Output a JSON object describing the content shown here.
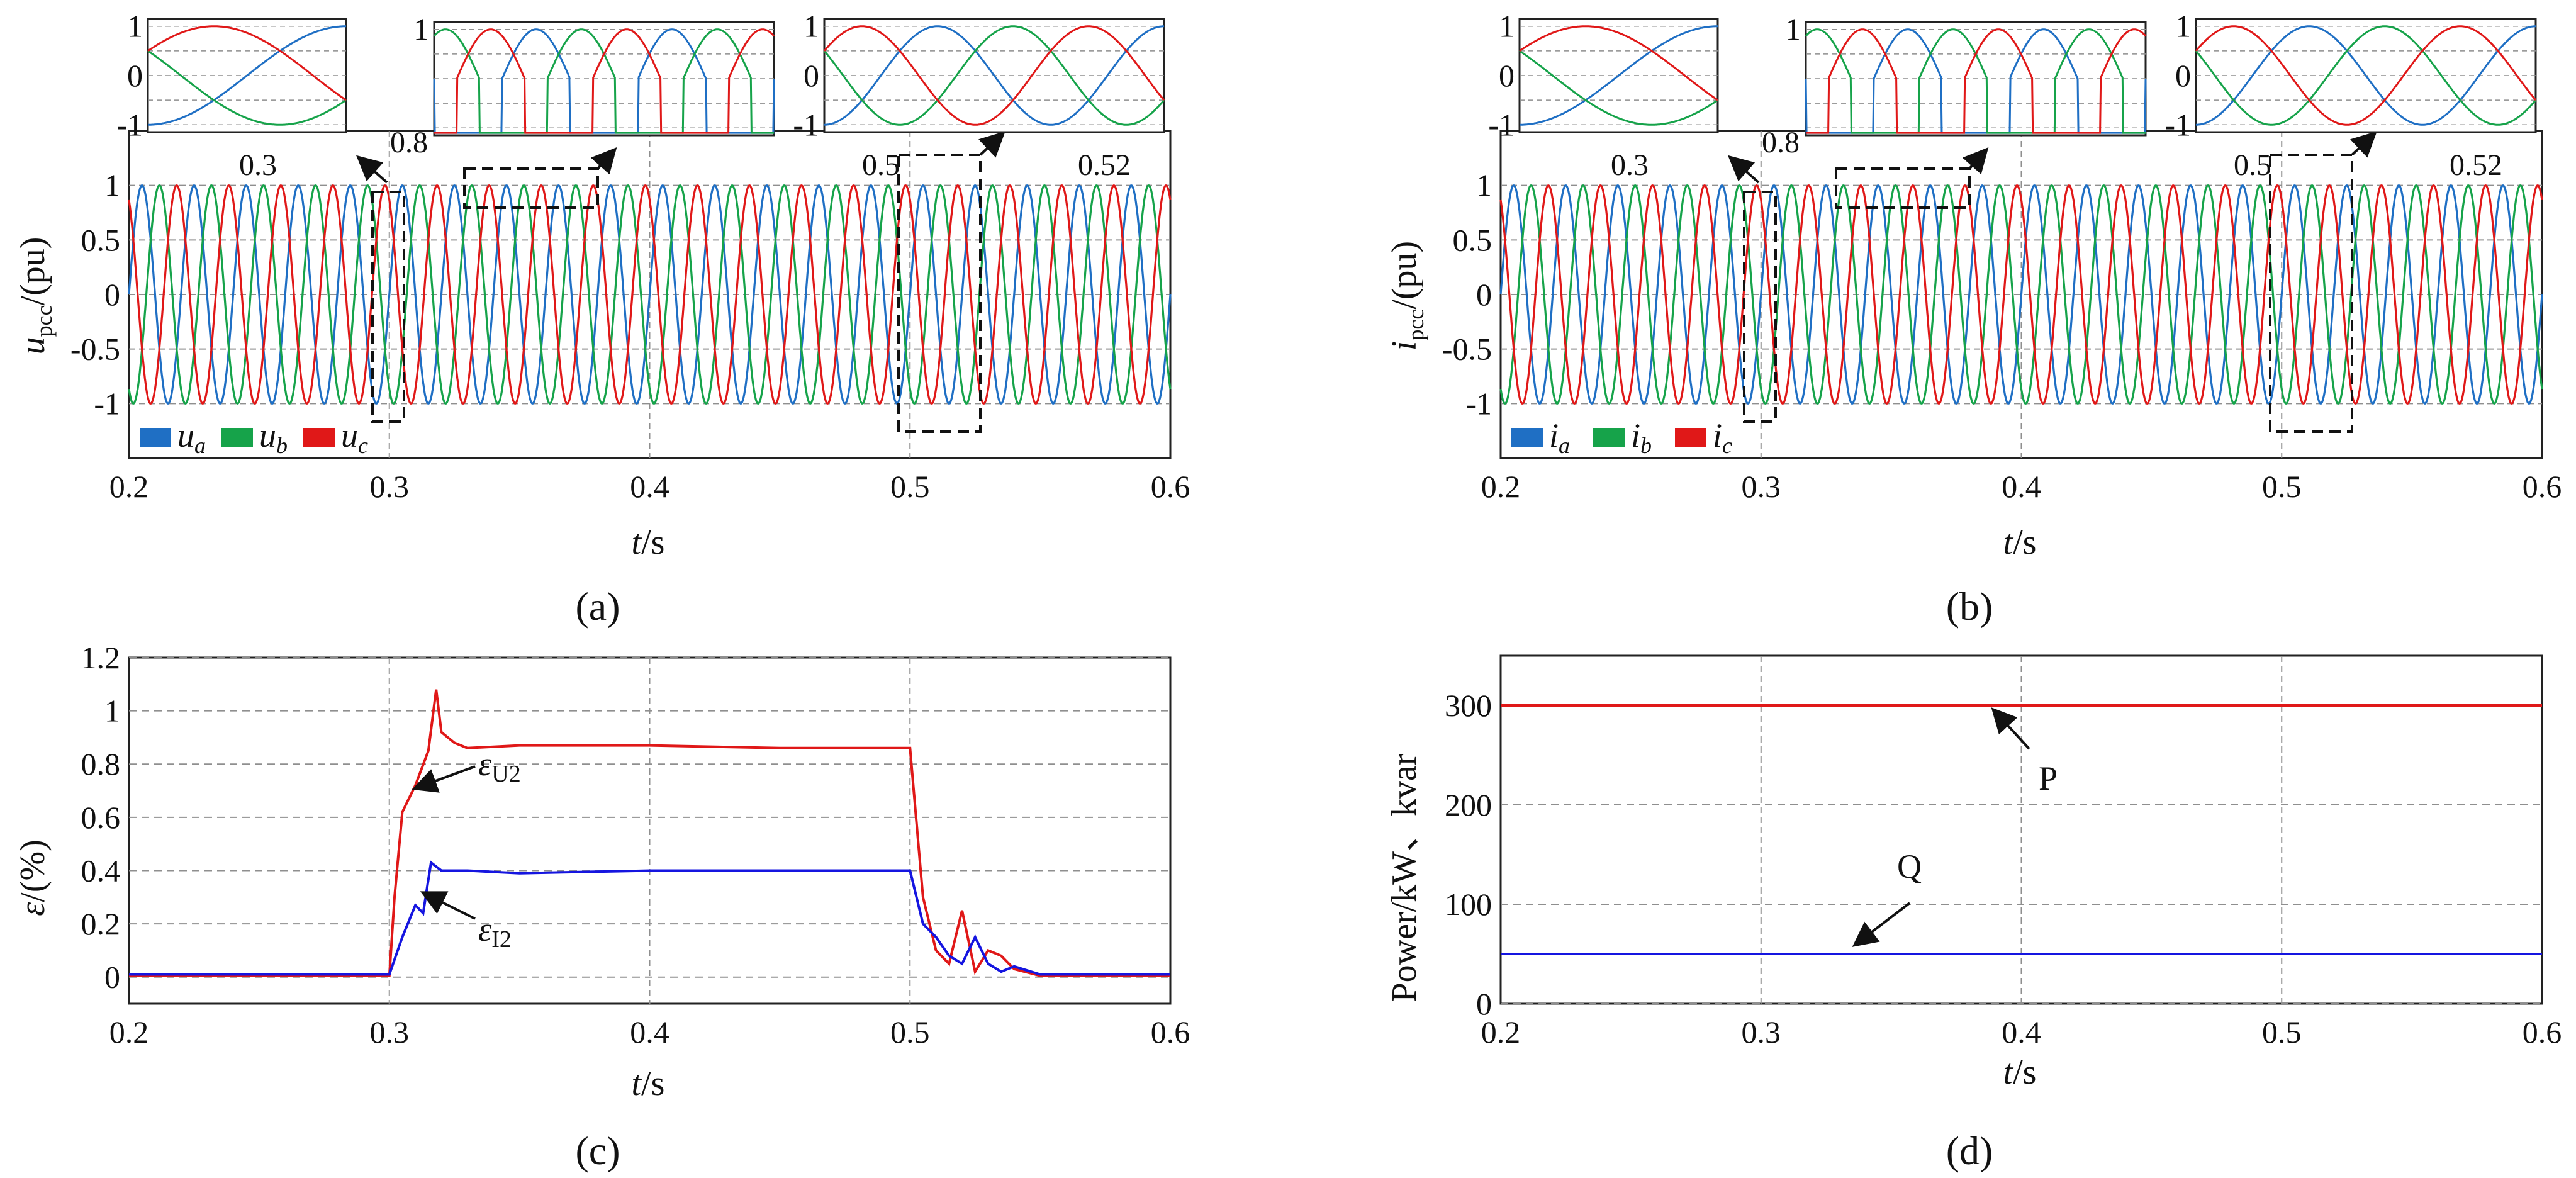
{
  "colors": {
    "a": "#1f6fc4",
    "b": "#16a34a",
    "c": "#e01818",
    "blue": "#1515e0",
    "red": "#e01818",
    "grid": "#8f8f8f"
  },
  "panels": [
    {
      "id": "a",
      "label": "(a)",
      "ylabel_sym": "u",
      "ylabel_sub": "pcc",
      "ylabel_unit": "/(pu)",
      "xlabel_sym": "t",
      "xlabel_unit": "/s",
      "legend": [
        {
          "sym": "u",
          "sub": "a"
        },
        {
          "sym": "u",
          "sub": "b"
        },
        {
          "sym": "u",
          "sub": "c"
        }
      ],
      "zoom_marks": [
        "0.3",
        "0.8",
        "0.5",
        "0.52"
      ]
    },
    {
      "id": "b",
      "label": "(b)",
      "ylabel_sym": "i",
      "ylabel_sub": "pcc",
      "ylabel_unit": "/(pu)",
      "xlabel_sym": "t",
      "xlabel_unit": "/s",
      "legend": [
        {
          "sym": "i",
          "sub": "a"
        },
        {
          "sym": "i",
          "sub": "b"
        },
        {
          "sym": "i",
          "sub": "c"
        }
      ],
      "zoom_marks": [
        "0.3",
        "0.8",
        "0.5",
        "0.52"
      ]
    },
    {
      "id": "c",
      "label": "(c)",
      "ylabel_sym": "ε",
      "ylabel_unit": "/(%)",
      "xlabel_sym": "t",
      "xlabel_unit": "/s",
      "annotations": [
        {
          "sym": "ε",
          "sub": "U2"
        },
        {
          "sym": "ε",
          "sub": "I2"
        }
      ]
    },
    {
      "id": "d",
      "label": "(d)",
      "ylabel": "Power/kW、kvar",
      "xlabel_sym": "t",
      "xlabel_unit": "/s",
      "annotations": [
        "P",
        "Q"
      ]
    }
  ],
  "chart_data": [
    {
      "type": "line",
      "title": "",
      "xlabel": "t/s",
      "ylabel": "u_pcc/(pu)",
      "xlim": [
        0.2,
        0.6
      ],
      "ylim": [
        -1.5,
        1.5
      ],
      "xticks": [
        "0.2",
        "0.3",
        "0.4",
        "0.5",
        "0.6"
      ],
      "yticks": [
        "1",
        "0.5",
        "0",
        "-0.5",
        "-1"
      ],
      "series": [
        {
          "name": "u_a",
          "frequency_hz": 50,
          "amplitude": 1,
          "phase_deg": 0
        },
        {
          "name": "u_b",
          "frequency_hz": 50,
          "amplitude": 1,
          "phase_deg": -120
        },
        {
          "name": "u_c",
          "frequency_hz": 50,
          "amplitude": 1,
          "phase_deg": 120
        }
      ],
      "inset_windows": [
        [
          0.295,
          0.305
        ],
        [
          0.33,
          0.38
        ],
        [
          0.495,
          0.525
        ]
      ],
      "inset_yticks": [
        "1",
        "0",
        "-1"
      ]
    },
    {
      "type": "line",
      "title": "",
      "xlabel": "t/s",
      "ylabel": "i_pcc/(pu)",
      "xlim": [
        0.2,
        0.6
      ],
      "ylim": [
        -1.5,
        1.5
      ],
      "xticks": [
        "0.2",
        "0.3",
        "0.4",
        "0.5",
        "0.6"
      ],
      "yticks": [
        "1",
        "0.5",
        "0",
        "-0.5",
        "-1"
      ],
      "series": [
        {
          "name": "i_a",
          "frequency_hz": 50,
          "amplitude": 1,
          "phase_deg": 0
        },
        {
          "name": "i_b",
          "frequency_hz": 50,
          "amplitude": 1,
          "phase_deg": -120
        },
        {
          "name": "i_c",
          "frequency_hz": 50,
          "amplitude": 1,
          "phase_deg": 120
        }
      ],
      "inset_windows": [
        [
          0.295,
          0.305
        ],
        [
          0.33,
          0.38
        ],
        [
          0.495,
          0.525
        ]
      ],
      "inset_yticks": [
        "1",
        "0",
        "-1"
      ]
    },
    {
      "type": "line",
      "title": "",
      "xlabel": "t/s",
      "ylabel": "ε/(%)",
      "xlim": [
        0.2,
        0.6
      ],
      "ylim": [
        -0.1,
        1.2
      ],
      "xticks": [
        "0.2",
        "0.3",
        "0.4",
        "0.5",
        "0.6"
      ],
      "yticks": [
        "0",
        "0.2",
        "0.4",
        "0.6",
        "0.8",
        "1",
        "1.2"
      ],
      "series": [
        {
          "name": "ε_U2",
          "x": [
            0.2,
            0.3,
            0.302,
            0.305,
            0.31,
            0.315,
            0.318,
            0.32,
            0.325,
            0.33,
            0.35,
            0.4,
            0.45,
            0.49,
            0.5,
            0.505,
            0.51,
            0.515,
            0.52,
            0.525,
            0.53,
            0.535,
            0.54,
            0.55,
            0.6
          ],
          "y": [
            0.005,
            0.005,
            0.3,
            0.62,
            0.72,
            0.85,
            1.08,
            0.92,
            0.88,
            0.86,
            0.87,
            0.87,
            0.86,
            0.86,
            0.86,
            0.3,
            0.1,
            0.05,
            0.25,
            0.02,
            0.1,
            0.08,
            0.03,
            0.005,
            0.005
          ]
        },
        {
          "name": "ε_I2",
          "x": [
            0.2,
            0.3,
            0.305,
            0.31,
            0.313,
            0.316,
            0.32,
            0.33,
            0.35,
            0.4,
            0.45,
            0.5,
            0.505,
            0.51,
            0.515,
            0.52,
            0.525,
            0.53,
            0.535,
            0.54,
            0.55,
            0.6
          ],
          "y": [
            0.01,
            0.01,
            0.15,
            0.27,
            0.24,
            0.43,
            0.4,
            0.4,
            0.39,
            0.4,
            0.4,
            0.4,
            0.2,
            0.15,
            0.08,
            0.05,
            0.15,
            0.05,
            0.02,
            0.04,
            0.01,
            0.01
          ]
        }
      ]
    },
    {
      "type": "line",
      "title": "",
      "xlabel": "t/s",
      "ylabel": "Power/kW、kvar",
      "xlim": [
        0.2,
        0.6
      ],
      "ylim": [
        0,
        350
      ],
      "xticks": [
        "0.2",
        "0.3",
        "0.4",
        "0.5",
        "0.6"
      ],
      "yticks": [
        "0",
        "100",
        "200",
        "300"
      ],
      "series": [
        {
          "name": "P",
          "x": [
            0.2,
            0.6
          ],
          "y": [
            300,
            300
          ]
        },
        {
          "name": "Q",
          "x": [
            0.2,
            0.6
          ],
          "y": [
            50,
            50
          ]
        }
      ]
    }
  ]
}
